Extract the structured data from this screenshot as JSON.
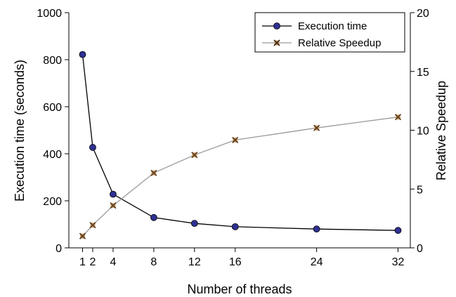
{
  "chart_data": {
    "type": "line",
    "xlabel": "Number of threads",
    "ylabel_left": "Execution time (seconds)",
    "ylabel_right": "Relative Speedup",
    "x_ticks": [
      1,
      2,
      4,
      8,
      12,
      16,
      24,
      32
    ],
    "x_tick_labels": [
      "1",
      "2",
      "4",
      "8",
      "12",
      "16",
      "24",
      "32"
    ],
    "y_left_range": [
      0,
      1000
    ],
    "y_left_ticks": [
      0,
      200,
      400,
      600,
      800,
      1000
    ],
    "y_left_tick_labels": [
      "0",
      "200",
      "400",
      "600",
      "800",
      "1000"
    ],
    "y_right_range": [
      0,
      20
    ],
    "y_right_ticks": [
      0,
      5,
      10,
      15,
      20
    ],
    "y_right_tick_labels": [
      "0",
      "5",
      "10",
      "15",
      "20"
    ],
    "grid": false,
    "legend_position": "top-right",
    "series": [
      {
        "name": "Execution time",
        "axis": "left",
        "color": "#000000",
        "marker_color": "#2e3192",
        "marker": "circle",
        "x": [
          1,
          2,
          4,
          8,
          12,
          16,
          24,
          32
        ],
        "y": [
          822,
          427,
          228,
          129,
          104,
          90,
          80,
          74
        ]
      },
      {
        "name": "Relative Speedup",
        "axis": "right",
        "color": "#999999",
        "marker_color": "#5a3a1e",
        "marker": "x",
        "x": [
          1,
          2,
          4,
          8,
          12,
          16,
          24,
          32
        ],
        "y": [
          1.0,
          1.93,
          3.6,
          6.37,
          7.9,
          9.17,
          10.2,
          11.12
        ]
      }
    ]
  }
}
